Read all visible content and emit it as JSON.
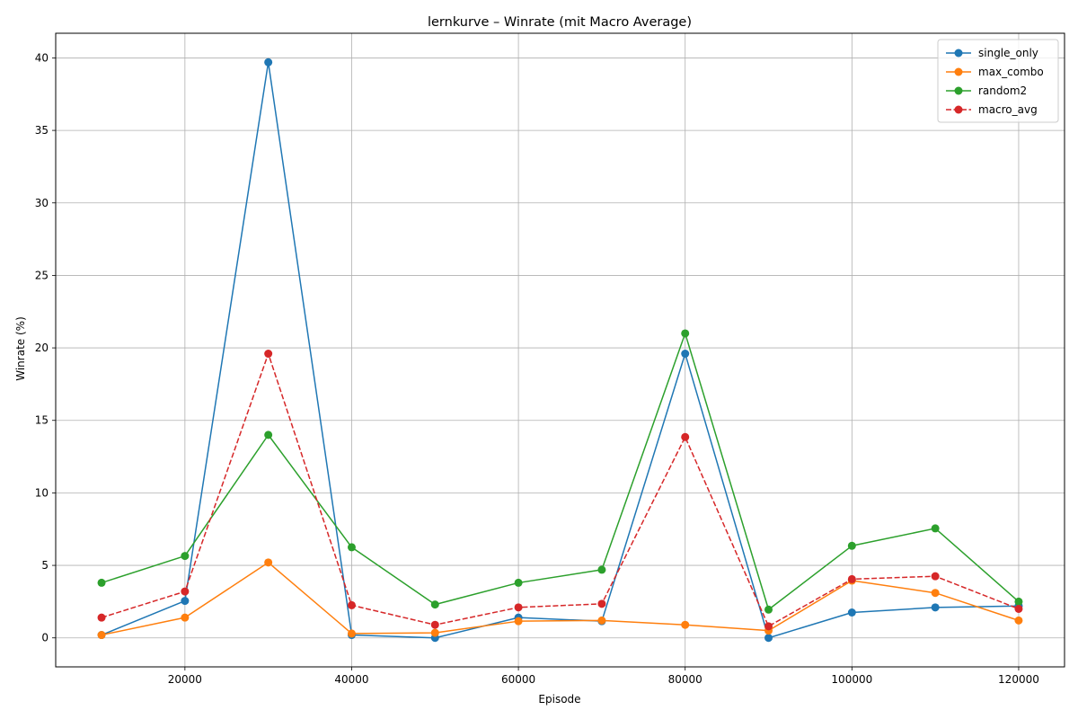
{
  "chart_data": {
    "type": "line",
    "title": "lernkurve – Winrate (mit Macro Average)",
    "xlabel": "Episode",
    "ylabel": "Winrate (%)",
    "x": [
      10000,
      20000,
      30000,
      40000,
      50000,
      60000,
      70000,
      80000,
      90000,
      100000,
      110000,
      120000
    ],
    "xlim": [
      4500,
      125500
    ],
    "ylim": [
      -2.0,
      41.7
    ],
    "xticks": [
      20000,
      40000,
      60000,
      80000,
      100000,
      120000
    ],
    "yticks": [
      0,
      5,
      10,
      15,
      20,
      25,
      30,
      35,
      40
    ],
    "grid": true,
    "legend_position": "top-right",
    "series": [
      {
        "name": "single_only",
        "color": "#1f77b4",
        "dashed": false,
        "values": [
          0.2,
          2.55,
          39.7,
          0.2,
          0.0,
          1.4,
          1.15,
          19.6,
          0.0,
          1.75,
          2.1,
          2.2
        ]
      },
      {
        "name": "max_combo",
        "color": "#ff7f0e",
        "dashed": false,
        "values": [
          0.2,
          1.4,
          5.2,
          0.3,
          0.35,
          1.15,
          1.2,
          0.9,
          0.5,
          3.95,
          3.1,
          1.2
        ]
      },
      {
        "name": "random2",
        "color": "#2ca02c",
        "dashed": false,
        "values": [
          3.8,
          5.65,
          14.0,
          6.25,
          2.3,
          3.8,
          4.7,
          21.0,
          1.95,
          6.35,
          7.55,
          2.5
        ]
      },
      {
        "name": "macro_avg",
        "color": "#d62728",
        "dashed": true,
        "values": [
          1.4,
          3.2,
          19.6,
          2.25,
          0.9,
          2.1,
          2.35,
          13.85,
          0.8,
          4.05,
          4.25,
          2.0
        ]
      }
    ]
  }
}
